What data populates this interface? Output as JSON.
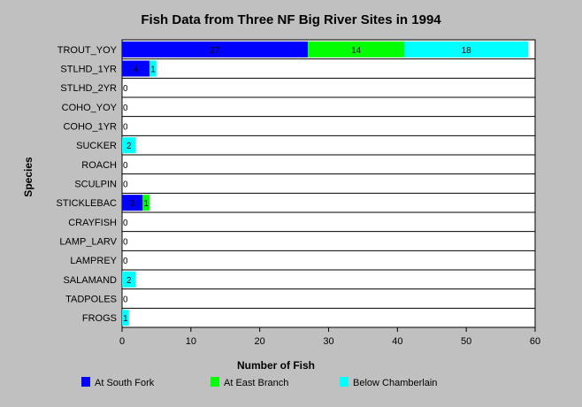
{
  "chart_data": {
    "type": "bar",
    "orientation": "horizontal",
    "stacked": true,
    "title": "Fish Data from Three NF Big River Sites in 1994",
    "xlabel": "Number of Fish",
    "ylabel": "Species",
    "xlim": [
      0,
      60
    ],
    "xticks": [
      "0",
      "10",
      "20",
      "30",
      "40",
      "50",
      "60"
    ],
    "grid": "horizontal separators between categories",
    "legend_position": "bottom",
    "categories": [
      "TROUT_YOY",
      "STLHD_1YR",
      "STLHD_2YR",
      "COHO_YOY",
      "COHO_1YR",
      "SUCKER",
      "ROACH",
      "SCULPIN",
      "STICKLEBAC",
      "CRAYFISH",
      "LAMP_LARV",
      "LAMPREY",
      "SALAMAND",
      "TADPOLES",
      "FROGS"
    ],
    "series": [
      {
        "name": "At South Fork",
        "color": "#0000ff",
        "values": [
          27,
          4,
          0,
          0,
          0,
          0,
          0,
          0,
          3,
          0,
          0,
          0,
          0,
          0,
          0
        ]
      },
      {
        "name": "At East Branch",
        "color": "#00ff00",
        "values": [
          14,
          0,
          0,
          0,
          0,
          0,
          0,
          0,
          1,
          0,
          0,
          0,
          0,
          0,
          0
        ]
      },
      {
        "name": "Below Chamberlain",
        "color": "#00ffff",
        "values": [
          18,
          1,
          0,
          0,
          0,
          2,
          0,
          0,
          0,
          0,
          0,
          0,
          2,
          0,
          1
        ]
      }
    ],
    "zero_label": "0"
  }
}
